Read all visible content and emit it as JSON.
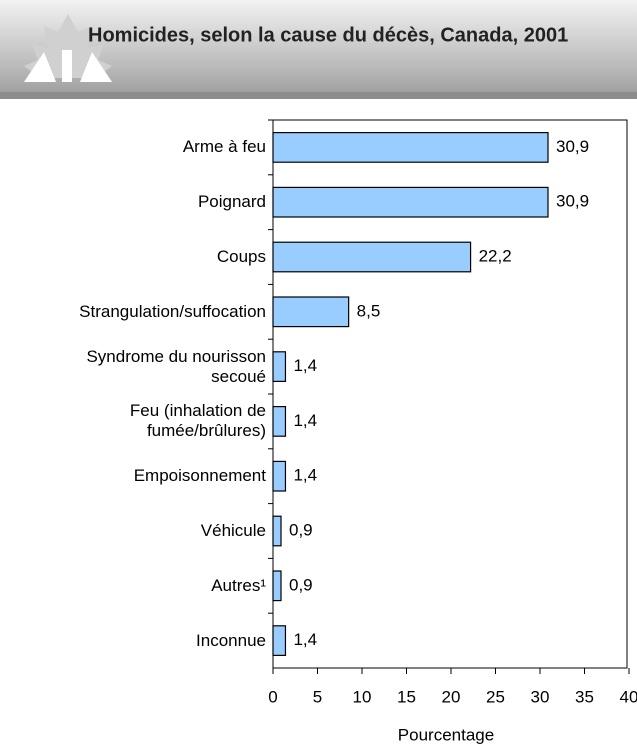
{
  "chart_data": {
    "type": "bar",
    "orientation": "horizontal",
    "title": "Homicides, selon la cause du décès, Canada, 2001",
    "categories": [
      "Arme à feu",
      "Poignard",
      "Coups",
      "Strangulation/suffocation",
      "Syndrome du nourisson\nsecoué",
      "Feu (inhalation de\nfumée/brûlures)",
      "Empoisonnement",
      "Véhicule",
      "Autres¹",
      "Inconnue"
    ],
    "values": [
      30.9,
      30.9,
      22.2,
      8.5,
      1.4,
      1.4,
      1.4,
      0.9,
      0.9,
      1.4
    ],
    "value_labels": [
      "30,9",
      "30,9",
      "22,2",
      "8,5",
      "1,4",
      "1,4",
      "1,4",
      "0,9",
      "0,9",
      "1,4"
    ],
    "color": "#99ccff",
    "xlabel": "Pourcentage",
    "xlim": [
      0,
      40
    ],
    "xticks": [
      0,
      5,
      10,
      15,
      20,
      25,
      30,
      35,
      40
    ]
  }
}
